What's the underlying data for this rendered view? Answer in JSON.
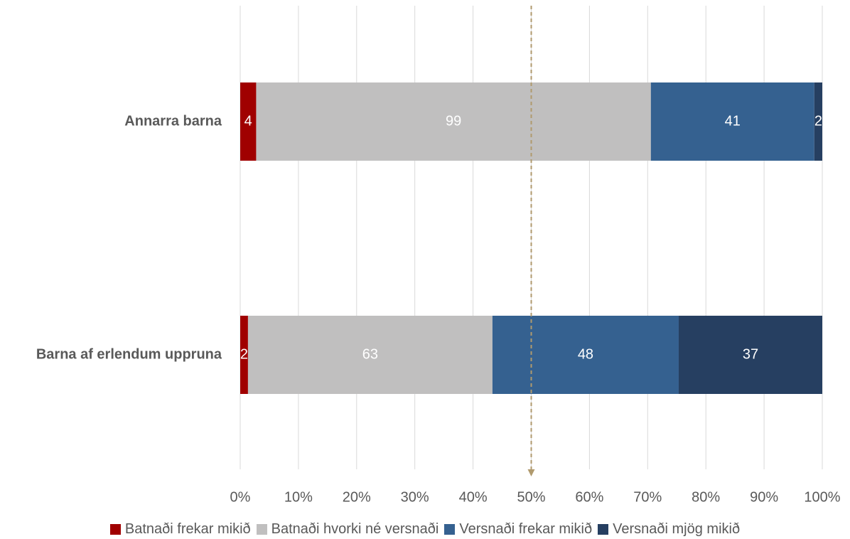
{
  "chart_data": {
    "type": "bar",
    "orientation": "horizontal",
    "stacked": "percent",
    "categories": [
      "Annarra barna",
      "Barna af erlendum uppruna"
    ],
    "series": [
      {
        "name": "Batnaði frekar mikið",
        "values": [
          4,
          2
        ],
        "color": "#a00000"
      },
      {
        "name": "Batnaði hvorki né versnaði",
        "values": [
          99,
          63
        ],
        "color": "#c0bfbf"
      },
      {
        "name": "Versnaði frekar mikið",
        "values": [
          41,
          48
        ],
        "color": "#356190"
      },
      {
        "name": "Versnaði mjög mikið",
        "values": [
          2,
          37
        ],
        "color": "#263f61"
      }
    ],
    "xlim": [
      0,
      100
    ],
    "xticks": [
      "0%",
      "10%",
      "20%",
      "30%",
      "40%",
      "50%",
      "60%",
      "70%",
      "80%",
      "90%",
      "100%"
    ],
    "reference_line": {
      "value": 50,
      "style": "dashed-arrow",
      "color": "#b09a6e"
    },
    "grid": "vertical",
    "legend": "bottom",
    "title": "",
    "xlabel": "",
    "ylabel": ""
  }
}
